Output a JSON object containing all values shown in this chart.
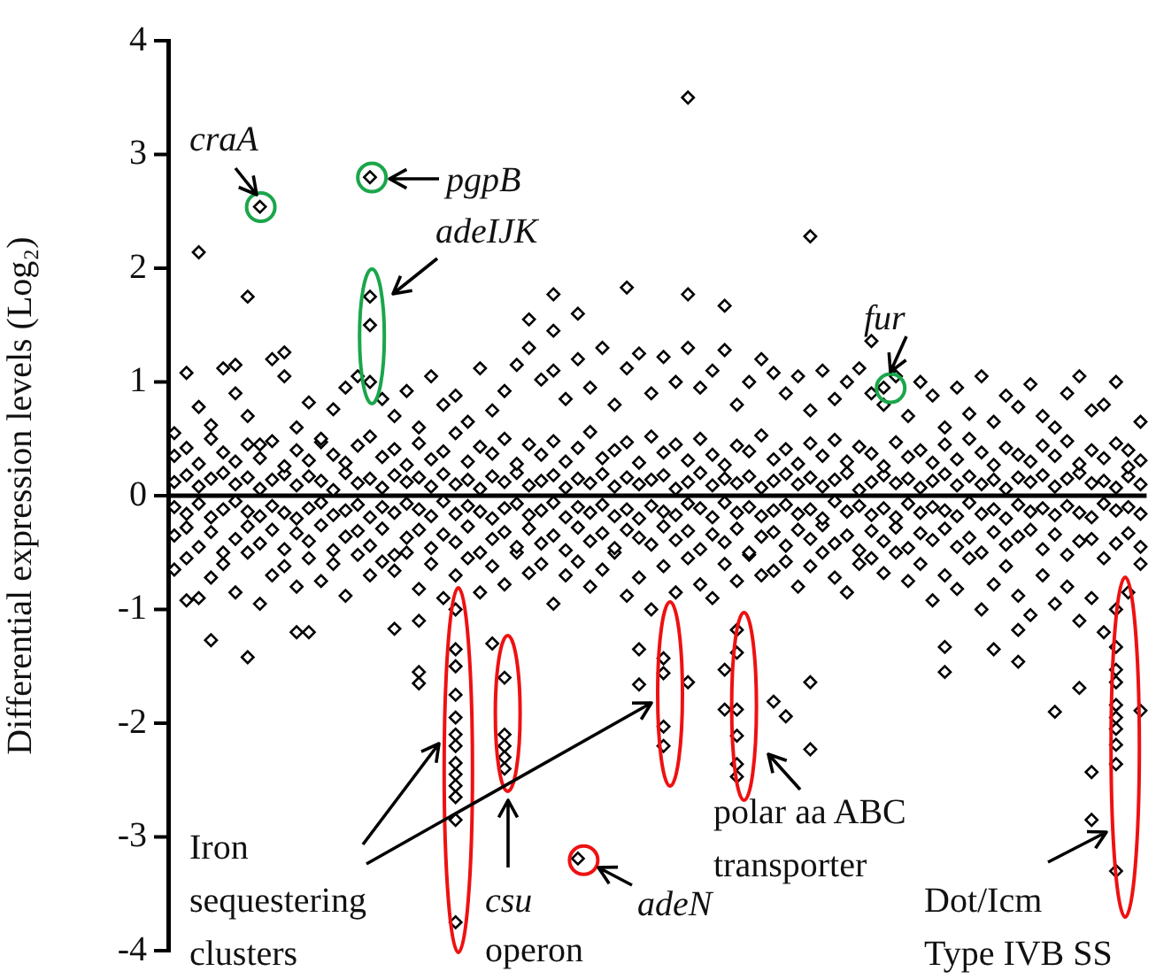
{
  "chart_data": {
    "type": "scatter",
    "ylabel": "Differential expression levels (Log₂)",
    "ylim": [
      -4,
      4
    ],
    "yticks": [
      -4,
      -3,
      -2,
      -1,
      0,
      1,
      2,
      3,
      4
    ],
    "grid": false,
    "legend": false,
    "tick_labels": "y",
    "marker": "diamond",
    "ref_lines": [
      {
        "axis": "y",
        "value": 0,
        "color": "#000000"
      }
    ],
    "annotations": [
      "craA",
      "pgpB",
      "adeIJK",
      "fur",
      "Iron sequestering clusters",
      "csu",
      "operon",
      "adeN",
      "polar aa ABC transporter",
      "Dot/Icm Type IVB SS"
    ],
    "categories": [
      null,
      null,
      null,
      null,
      null,
      null,
      null,
      null,
      null,
      null,
      null,
      null,
      null,
      null,
      null,
      null,
      null,
      null,
      null,
      null,
      null,
      null,
      null,
      null,
      null,
      null,
      null,
      null,
      null,
      null,
      null,
      null,
      null,
      null,
      null,
      null,
      null,
      null,
      null,
      null,
      null,
      null,
      null,
      null,
      null,
      null,
      null,
      null,
      null,
      null,
      null,
      null,
      null,
      null,
      null,
      null,
      null,
      null,
      null,
      null,
      null,
      null,
      null,
      null,
      null,
      null,
      null,
      null,
      null,
      null,
      null,
      null,
      null,
      null,
      null,
      null,
      null,
      null,
      null,
      null
    ],
    "series": [
      {
        "color": "#000000",
        "values": [
          0.55,
          1.08,
          0.78,
          0.62,
          1.12,
          0.9,
          0.7,
          0.45,
          1.2,
          1.05,
          0.6,
          0.82,
          0.5,
          0.76,
          0.95,
          1.05,
          1.0,
          0.85,
          0.7,
          0.92,
          0.6,
          1.05,
          0.8,
          0.88,
          0.65,
          1.12,
          0.75,
          0.92,
          1.15,
          1.3,
          1.02,
          1.1,
          0.85,
          1.2,
          0.95,
          1.3,
          0.8,
          1.12,
          1.25,
          0.9,
          1.22,
          1.0,
          1.3,
          0.95,
          1.1,
          1.28,
          0.8,
          1.0,
          1.2,
          1.08,
          0.9,
          1.05,
          0.75,
          1.1,
          0.85,
          1.0,
          1.12,
          0.9,
          0.8,
          1.05,
          0.7,
          1.0,
          0.88,
          0.6,
          0.95,
          0.72,
          1.05,
          0.65,
          0.88,
          0.78,
          0.98,
          0.7,
          0.6,
          0.9,
          1.05,
          0.75,
          0.8,
          1.0,
          0.4,
          0.65
        ]
      },
      {
        "color": "#000000",
        "values": [
          0.35,
          0.42,
          0.28,
          0.5,
          0.38,
          0.3,
          0.45,
          0.33,
          0.48,
          0.26,
          0.4,
          0.31,
          0.47,
          0.36,
          0.29,
          0.44,
          0.52,
          0.34,
          0.41,
          0.27,
          0.46,
          0.32,
          0.39,
          0.55,
          0.3,
          0.43,
          0.37,
          0.5,
          0.28,
          0.45,
          0.36,
          0.48,
          0.3,
          0.42,
          0.56,
          0.33,
          0.4,
          0.47,
          0.29,
          0.52,
          0.38,
          0.45,
          0.31,
          0.5,
          0.36,
          0.27,
          0.44,
          0.39,
          0.53,
          0.32,
          0.41,
          0.28,
          0.46,
          0.35,
          0.49,
          0.3,
          0.43,
          0.37,
          0.26,
          0.47,
          0.34,
          0.4,
          0.29,
          0.45,
          0.32,
          0.5,
          0.38,
          0.27,
          0.42,
          0.36,
          0.3,
          0.44,
          0.35,
          0.48,
          0.28,
          0.4,
          0.33,
          0.46,
          0.25,
          0.31
        ]
      },
      {
        "color": "#000000",
        "values": [
          0.12,
          0.18,
          0.08,
          0.15,
          0.2,
          0.1,
          0.16,
          0.06,
          0.14,
          0.19,
          0.09,
          0.17,
          0.13,
          0.05,
          0.2,
          0.11,
          0.15,
          0.07,
          0.18,
          0.12,
          0.16,
          0.08,
          0.19,
          0.1,
          0.14,
          0.06,
          0.17,
          0.12,
          0.2,
          0.09,
          0.13,
          0.18,
          0.07,
          0.15,
          0.11,
          0.19,
          0.08,
          0.16,
          0.1,
          0.14,
          0.18,
          0.06,
          0.12,
          0.2,
          0.09,
          0.15,
          0.11,
          0.17,
          0.07,
          0.13,
          0.19,
          0.1,
          0.16,
          0.08,
          0.14,
          0.2,
          0.05,
          0.12,
          0.18,
          0.11,
          0.15,
          0.07,
          0.13,
          0.19,
          0.09,
          0.17,
          0.1,
          0.14,
          0.06,
          0.16,
          0.12,
          0.18,
          0.08,
          0.15,
          0.2,
          0.11,
          0.13,
          0.07,
          0.17,
          0.1
        ]
      },
      {
        "color": "#000000",
        "values": [
          -0.1,
          -0.16,
          -0.07,
          -0.19,
          -0.12,
          -0.05,
          -0.14,
          -0.18,
          -0.09,
          -0.15,
          -0.2,
          -0.11,
          -0.06,
          -0.17,
          -0.13,
          -0.08,
          -0.19,
          -0.1,
          -0.15,
          -0.07,
          -0.12,
          -0.18,
          -0.05,
          -0.16,
          -0.09,
          -0.14,
          -0.2,
          -0.11,
          -0.07,
          -0.17,
          -0.13,
          -0.06,
          -0.19,
          -0.1,
          -0.15,
          -0.08,
          -0.18,
          -0.12,
          -0.2,
          -0.09,
          -0.14,
          -0.17,
          -0.07,
          -0.11,
          -0.19,
          -0.06,
          -0.15,
          -0.1,
          -0.18,
          -0.13,
          -0.08,
          -0.16,
          -0.12,
          -0.2,
          -0.05,
          -0.14,
          -0.09,
          -0.17,
          -0.11,
          -0.19,
          -0.07,
          -0.15,
          -0.1,
          -0.13,
          -0.18,
          -0.06,
          -0.16,
          -0.12,
          -0.2,
          -0.08,
          -0.14,
          -0.11,
          -0.17,
          -0.09,
          -0.15,
          -0.19,
          -0.07,
          -0.13,
          -0.1,
          -0.16
        ]
      },
      {
        "color": "#000000",
        "values": [
          -0.35,
          -0.28,
          -0.45,
          -0.32,
          -0.5,
          -0.38,
          -0.27,
          -0.42,
          -0.3,
          -0.47,
          -0.33,
          -0.4,
          -0.26,
          -0.48,
          -0.36,
          -0.31,
          -0.44,
          -0.29,
          -0.52,
          -0.37,
          -0.3,
          -0.46,
          -0.34,
          -0.41,
          -0.27,
          -0.5,
          -0.38,
          -0.32,
          -0.45,
          -0.29,
          -0.42,
          -0.35,
          -0.48,
          -0.28,
          -0.4,
          -0.33,
          -0.46,
          -0.3,
          -0.37,
          -0.43,
          -0.27,
          -0.39,
          -0.31,
          -0.47,
          -0.34,
          -0.41,
          -0.29,
          -0.5,
          -0.36,
          -0.32,
          -0.44,
          -0.3,
          -0.38,
          -0.26,
          -0.42,
          -0.35,
          -0.48,
          -0.31,
          -0.4,
          -0.28,
          -0.46,
          -0.33,
          -0.39,
          -0.29,
          -0.45,
          -0.37,
          -0.5,
          -0.32,
          -0.43,
          -0.36,
          -0.3,
          -0.47,
          -0.34,
          -0.52,
          -0.4,
          -0.38,
          -0.55,
          -0.42,
          -0.33,
          -0.45
        ]
      },
      {
        "color": "#000000",
        "values": [
          -0.65,
          -0.55,
          -0.9,
          -0.72,
          -0.6,
          -0.85,
          -0.5,
          -0.95,
          -0.7,
          -0.62,
          -0.8,
          -0.55,
          -0.75,
          -0.6,
          -0.88,
          -0.52,
          -0.7,
          -0.58,
          -0.66,
          -0.5,
          -0.82,
          -0.6,
          -0.9,
          -0.7,
          -0.55,
          -0.85,
          -0.62,
          -0.78,
          -0.5,
          -0.68,
          -0.6,
          -0.95,
          -0.7,
          -0.58,
          -0.8,
          -0.65,
          -0.5,
          -0.88,
          -0.72,
          -1.0,
          -0.62,
          -0.85,
          -0.55,
          -0.78,
          -0.9,
          -0.6,
          -0.75,
          -0.52,
          -0.7,
          -0.66,
          -0.58,
          -0.8,
          -0.62,
          -0.5,
          -0.72,
          -0.85,
          -0.6,
          -0.55,
          -0.68,
          -0.5,
          -0.75,
          -0.6,
          -0.92,
          -0.7,
          -0.82,
          -0.55,
          -1.0,
          -0.78,
          -0.62,
          -0.88,
          -1.05,
          -0.7,
          -0.95,
          -0.8,
          -1.1,
          -0.9,
          -1.2,
          -1.0,
          -0.85,
          -0.6
        ]
      },
      {
        "color": "#000000",
        "values": [
          null,
          null,
          2.14,
          null,
          null,
          1.15,
          1.75,
          2.54,
          null,
          1.26,
          null,
          null,
          null,
          null,
          null,
          null,
          2.8,
          null,
          null,
          null,
          null,
          null,
          null,
          null,
          null,
          null,
          null,
          null,
          null,
          1.55,
          null,
          1.45,
          null,
          1.6,
          null,
          null,
          null,
          1.83,
          null,
          null,
          null,
          null,
          3.5,
          null,
          null,
          1.67,
          null,
          null,
          null,
          null,
          null,
          null,
          2.28,
          null,
          null,
          null,
          null,
          1.36,
          0.95,
          null,
          null,
          null,
          null,
          null,
          null,
          null,
          null,
          null,
          null,
          null,
          null,
          null,
          null,
          null,
          null,
          null,
          null,
          null,
          null,
          null
        ]
      },
      {
        "color": "#000000",
        "values": [
          null,
          null,
          null,
          null,
          null,
          null,
          null,
          null,
          null,
          null,
          null,
          null,
          null,
          null,
          null,
          null,
          1.75,
          null,
          null,
          null,
          null,
          null,
          null,
          null,
          null,
          null,
          null,
          null,
          null,
          null,
          null,
          1.77,
          null,
          null,
          null,
          null,
          null,
          null,
          null,
          null,
          null,
          null,
          1.77,
          null,
          null,
          null,
          null,
          null,
          null,
          null,
          null,
          null,
          null,
          null,
          null,
          null,
          null,
          null,
          null,
          null,
          null,
          null,
          null,
          null,
          null,
          null,
          null,
          null,
          null,
          null,
          null,
          null,
          null,
          null,
          null,
          null,
          null,
          null,
          null,
          null
        ]
      },
      {
        "color": "#000000",
        "values": [
          null,
          null,
          null,
          null,
          null,
          null,
          null,
          null,
          null,
          null,
          null,
          null,
          null,
          null,
          null,
          null,
          1.5,
          null,
          null,
          null,
          null,
          null,
          null,
          null,
          null,
          null,
          null,
          null,
          null,
          null,
          null,
          null,
          null,
          null,
          null,
          null,
          null,
          null,
          null,
          null,
          null,
          null,
          null,
          null,
          null,
          null,
          null,
          null,
          null,
          null,
          null,
          null,
          null,
          null,
          null,
          null,
          null,
          null,
          null,
          null,
          null,
          null,
          null,
          null,
          null,
          null,
          null,
          null,
          null,
          null,
          null,
          null,
          null,
          null,
          null,
          null,
          null,
          null,
          null,
          null
        ]
      },
      {
        "color": "#000000",
        "values": [
          null,
          -0.92,
          null,
          -1.27,
          null,
          null,
          -1.42,
          null,
          null,
          null,
          -1.2,
          -1.2,
          null,
          null,
          null,
          null,
          null,
          null,
          -1.17,
          null,
          -1.1,
          null,
          null,
          -1.0,
          null,
          null,
          -1.3,
          -1.6,
          null,
          null,
          null,
          null,
          null,
          -3.19,
          null,
          null,
          null,
          null,
          -1.35,
          null,
          -1.43,
          null,
          -1.64,
          null,
          null,
          -1.53,
          -1.18,
          null,
          null,
          -1.81,
          -1.94,
          null,
          -1.64,
          null,
          null,
          null,
          null,
          null,
          null,
          null,
          null,
          null,
          null,
          -1.33,
          null,
          null,
          null,
          -1.35,
          null,
          -1.18,
          null,
          null,
          -1.9,
          null,
          -1.69,
          -2.43,
          null,
          -1.33,
          null,
          -1.89
        ]
      },
      {
        "color": "#000000",
        "values": [
          null,
          null,
          null,
          null,
          null,
          null,
          null,
          null,
          null,
          null,
          null,
          null,
          null,
          null,
          null,
          null,
          null,
          null,
          null,
          null,
          -1.55,
          null,
          null,
          -1.35,
          null,
          null,
          null,
          -2.1,
          null,
          null,
          null,
          null,
          null,
          null,
          null,
          null,
          null,
          null,
          -1.66,
          null,
          -1.56,
          null,
          null,
          null,
          null,
          -1.88,
          -1.38,
          null,
          null,
          null,
          null,
          null,
          -2.23,
          null,
          null,
          null,
          null,
          null,
          null,
          null,
          null,
          null,
          null,
          -1.55,
          null,
          null,
          null,
          null,
          null,
          -1.46,
          null,
          null,
          null,
          null,
          null,
          -2.85,
          null,
          -1.53,
          null,
          null
        ]
      },
      {
        "color": "#000000",
        "values": [
          null,
          null,
          null,
          null,
          null,
          null,
          null,
          null,
          null,
          null,
          null,
          null,
          null,
          null,
          null,
          null,
          null,
          null,
          null,
          null,
          -1.65,
          null,
          null,
          null,
          null,
          null,
          null,
          -2.2,
          null,
          null,
          null,
          null,
          null,
          null,
          null,
          null,
          null,
          null,
          null,
          null,
          -2.03,
          null,
          null,
          null,
          null,
          null,
          -1.88,
          null,
          null,
          null,
          null,
          null,
          null,
          null,
          null,
          null,
          null,
          null,
          null,
          null,
          null,
          null,
          null,
          null,
          null,
          null,
          null,
          null,
          null,
          null,
          null,
          null,
          null,
          null,
          null,
          null,
          null,
          -1.64,
          null,
          null
        ]
      },
      {
        "color": "#000000",
        "values": [
          null,
          null,
          null,
          null,
          null,
          null,
          null,
          null,
          null,
          null,
          null,
          null,
          null,
          null,
          null,
          null,
          null,
          null,
          null,
          null,
          null,
          null,
          null,
          -1.5,
          null,
          null,
          null,
          -2.3,
          null,
          null,
          null,
          null,
          null,
          null,
          null,
          null,
          null,
          null,
          null,
          null,
          -2.2,
          null,
          null,
          null,
          null,
          null,
          -2.11,
          null,
          null,
          null,
          null,
          null,
          null,
          null,
          null,
          null,
          null,
          null,
          null,
          null,
          null,
          null,
          null,
          null,
          null,
          null,
          null,
          null,
          null,
          null,
          null,
          null,
          null,
          null,
          null,
          null,
          null,
          -1.84,
          null,
          null
        ]
      },
      {
        "color": "#000000",
        "values": [
          null,
          null,
          null,
          null,
          null,
          null,
          null,
          null,
          null,
          null,
          null,
          null,
          null,
          null,
          null,
          null,
          null,
          null,
          null,
          null,
          null,
          null,
          null,
          -1.75,
          null,
          null,
          null,
          -2.4,
          null,
          null,
          null,
          null,
          null,
          null,
          null,
          null,
          null,
          null,
          null,
          null,
          null,
          null,
          null,
          null,
          null,
          null,
          -2.36,
          null,
          null,
          null,
          null,
          null,
          null,
          null,
          null,
          null,
          null,
          null,
          null,
          null,
          null,
          null,
          null,
          null,
          null,
          null,
          null,
          null,
          null,
          null,
          null,
          null,
          null,
          null,
          null,
          null,
          null,
          -1.95,
          null,
          null
        ]
      },
      {
        "color": "#000000",
        "values": [
          null,
          null,
          null,
          null,
          null,
          null,
          null,
          null,
          null,
          null,
          null,
          null,
          null,
          null,
          null,
          null,
          null,
          null,
          null,
          null,
          null,
          null,
          null,
          -1.95,
          null,
          null,
          null,
          null,
          null,
          null,
          null,
          null,
          null,
          null,
          null,
          null,
          null,
          null,
          null,
          null,
          null,
          null,
          null,
          null,
          null,
          null,
          -2.47,
          null,
          null,
          null,
          null,
          null,
          null,
          null,
          null,
          null,
          null,
          null,
          null,
          null,
          null,
          null,
          null,
          null,
          null,
          null,
          null,
          null,
          null,
          null,
          null,
          null,
          null,
          null,
          null,
          null,
          null,
          -2.05,
          null,
          null
        ]
      },
      {
        "color": "#000000",
        "values": [
          null,
          null,
          null,
          null,
          null,
          null,
          null,
          null,
          null,
          null,
          null,
          null,
          null,
          null,
          null,
          null,
          null,
          null,
          null,
          null,
          null,
          null,
          null,
          -2.1,
          null,
          null,
          null,
          null,
          null,
          null,
          null,
          null,
          null,
          null,
          null,
          null,
          null,
          null,
          null,
          null,
          null,
          null,
          null,
          null,
          null,
          null,
          null,
          null,
          null,
          null,
          null,
          null,
          null,
          null,
          null,
          null,
          null,
          null,
          null,
          null,
          null,
          null,
          null,
          null,
          null,
          null,
          null,
          null,
          null,
          null,
          null,
          null,
          null,
          null,
          null,
          null,
          null,
          -2.19,
          null,
          null
        ]
      },
      {
        "color": "#000000",
        "values": [
          null,
          null,
          null,
          null,
          null,
          null,
          null,
          null,
          null,
          null,
          null,
          null,
          null,
          null,
          null,
          null,
          null,
          null,
          null,
          null,
          null,
          null,
          null,
          -2.2,
          null,
          null,
          null,
          null,
          null,
          null,
          null,
          null,
          null,
          null,
          null,
          null,
          null,
          null,
          null,
          null,
          null,
          null,
          null,
          null,
          null,
          null,
          null,
          null,
          null,
          null,
          null,
          null,
          null,
          null,
          null,
          null,
          null,
          null,
          null,
          null,
          null,
          null,
          null,
          null,
          null,
          null,
          null,
          null,
          null,
          null,
          null,
          null,
          null,
          null,
          null,
          null,
          null,
          null,
          null,
          null
        ]
      },
      {
        "color": "#000000",
        "values": [
          null,
          null,
          null,
          null,
          null,
          null,
          null,
          null,
          null,
          null,
          null,
          null,
          null,
          null,
          null,
          null,
          null,
          null,
          null,
          null,
          null,
          null,
          null,
          -2.35,
          null,
          null,
          null,
          null,
          null,
          null,
          null,
          null,
          null,
          null,
          null,
          null,
          null,
          null,
          null,
          null,
          null,
          null,
          null,
          null,
          null,
          null,
          null,
          null,
          null,
          null,
          null,
          null,
          null,
          null,
          null,
          null,
          null,
          null,
          null,
          null,
          null,
          null,
          null,
          null,
          null,
          null,
          null,
          null,
          null,
          null,
          null,
          null,
          null,
          null,
          null,
          null,
          null,
          -2.36,
          null,
          null
        ]
      },
      {
        "color": "#000000",
        "values": [
          null,
          null,
          null,
          null,
          null,
          null,
          null,
          null,
          null,
          null,
          null,
          null,
          null,
          null,
          null,
          null,
          null,
          null,
          null,
          null,
          null,
          null,
          null,
          -2.45,
          null,
          null,
          null,
          null,
          null,
          null,
          null,
          null,
          null,
          null,
          null,
          null,
          null,
          null,
          null,
          null,
          null,
          null,
          null,
          null,
          null,
          null,
          null,
          null,
          null,
          null,
          null,
          null,
          null,
          null,
          null,
          null,
          null,
          null,
          null,
          null,
          null,
          null,
          null,
          null,
          null,
          null,
          null,
          null,
          null,
          null,
          null,
          null,
          null,
          null,
          null,
          null,
          null,
          -3.3,
          null,
          null
        ]
      },
      {
        "color": "#000000",
        "values": [
          null,
          null,
          null,
          null,
          null,
          null,
          null,
          null,
          null,
          null,
          null,
          null,
          null,
          null,
          null,
          null,
          null,
          null,
          null,
          null,
          null,
          null,
          null,
          -2.55,
          null,
          null,
          null,
          null,
          null,
          null,
          null,
          null,
          null,
          null,
          null,
          null,
          null,
          null,
          null,
          null,
          null,
          null,
          null,
          null,
          null,
          null,
          null,
          null,
          null,
          null,
          null,
          null,
          null,
          null,
          null,
          null,
          null,
          null,
          null,
          null,
          null,
          null,
          null,
          null,
          null,
          null,
          null,
          null,
          null,
          null,
          null,
          null,
          null,
          null,
          null,
          null,
          null,
          null,
          null,
          null
        ]
      },
      {
        "color": "#000000",
        "values": [
          null,
          null,
          null,
          null,
          null,
          null,
          null,
          null,
          null,
          null,
          null,
          null,
          null,
          null,
          null,
          null,
          null,
          null,
          null,
          null,
          null,
          null,
          null,
          -2.65,
          null,
          null,
          null,
          null,
          null,
          null,
          null,
          null,
          null,
          null,
          null,
          null,
          null,
          null,
          null,
          null,
          null,
          null,
          null,
          null,
          null,
          null,
          null,
          null,
          null,
          null,
          null,
          null,
          null,
          null,
          null,
          null,
          null,
          null,
          null,
          null,
          null,
          null,
          null,
          null,
          null,
          null,
          null,
          null,
          null,
          null,
          null,
          null,
          null,
          null,
          null,
          null,
          null,
          null,
          null,
          null
        ]
      },
      {
        "color": "#000000",
        "values": [
          null,
          null,
          null,
          null,
          null,
          null,
          null,
          null,
          null,
          null,
          null,
          null,
          null,
          null,
          null,
          null,
          null,
          null,
          null,
          null,
          null,
          null,
          null,
          -2.85,
          null,
          null,
          null,
          null,
          null,
          null,
          null,
          null,
          null,
          null,
          null,
          null,
          null,
          null,
          null,
          null,
          null,
          null,
          null,
          null,
          null,
          null,
          null,
          null,
          null,
          null,
          null,
          null,
          null,
          null,
          null,
          null,
          null,
          null,
          null,
          null,
          null,
          null,
          null,
          null,
          null,
          null,
          null,
          null,
          null,
          null,
          null,
          null,
          null,
          null,
          null,
          null,
          null,
          null,
          null,
          null
        ]
      },
      {
        "color": "#000000",
        "values": [
          null,
          null,
          null,
          null,
          null,
          null,
          null,
          null,
          null,
          null,
          null,
          null,
          null,
          null,
          null,
          null,
          null,
          null,
          null,
          null,
          null,
          null,
          null,
          -3.75,
          null,
          null,
          null,
          null,
          null,
          null,
          null,
          null,
          null,
          null,
          null,
          null,
          null,
          null,
          null,
          null,
          null,
          null,
          null,
          null,
          null,
          null,
          null,
          null,
          null,
          null,
          null,
          null,
          null,
          null,
          null,
          null,
          null,
          null,
          null,
          null,
          null,
          null,
          null,
          null,
          null,
          null,
          null,
          null,
          null,
          null,
          null,
          null,
          null,
          null,
          null,
          null,
          null,
          null,
          null,
          null
        ]
      }
    ]
  }
}
